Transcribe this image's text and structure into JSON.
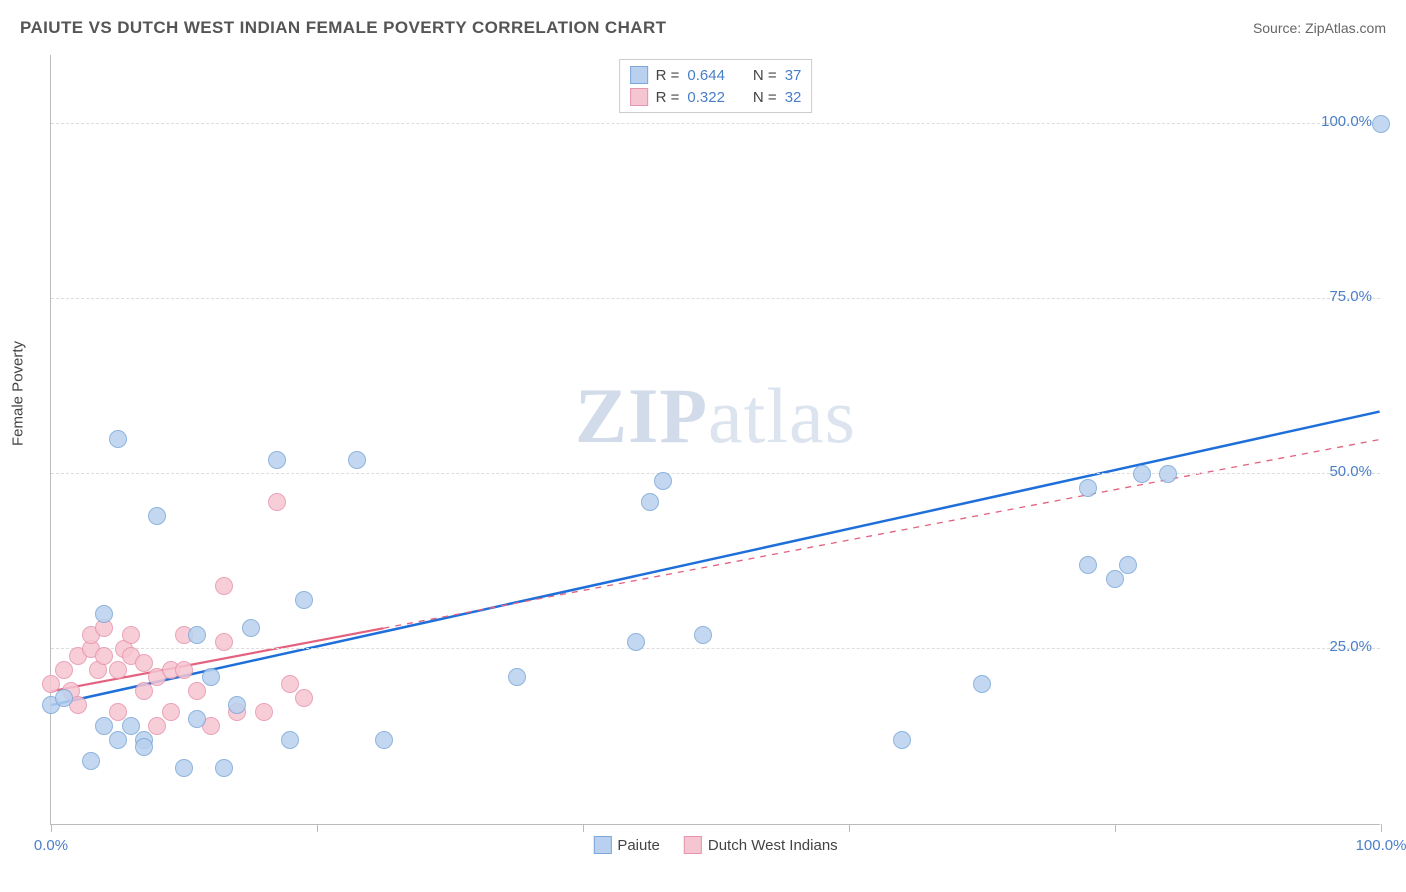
{
  "title": "PAIUTE VS DUTCH WEST INDIAN FEMALE POVERTY CORRELATION CHART",
  "source": "Source: ZipAtlas.com",
  "ylabel": "Female Poverty",
  "watermark_a": "ZIP",
  "watermark_b": "atlas",
  "chart": {
    "type": "scatter",
    "xlim": [
      0,
      100
    ],
    "ylim": [
      0,
      110
    ],
    "xticks": [
      0,
      20,
      40,
      60,
      80,
      100
    ],
    "xtick_labels": {
      "0": "0.0%",
      "100": "100.0%"
    },
    "yticks": [
      25,
      50,
      75,
      100
    ],
    "ytick_labels": {
      "25": "25.0%",
      "50": "50.0%",
      "75": "75.0%",
      "100": "100.0%"
    },
    "background_color": "#ffffff",
    "grid_color": "#dddddd",
    "marker_radius": 9,
    "series": [
      {
        "name": "Paiute",
        "color_fill": "#b9d1ee",
        "color_stroke": "#7ba7d9",
        "R": "0.644",
        "N": "37",
        "regression": {
          "x1": 0,
          "y1": 17,
          "x2": 100,
          "y2": 59,
          "solid_until": 100,
          "color": "#1e6fd9",
          "width": 2.5
        },
        "points": [
          [
            0,
            17
          ],
          [
            1,
            18
          ],
          [
            3,
            9
          ],
          [
            4,
            14
          ],
          [
            4,
            30
          ],
          [
            5,
            55
          ],
          [
            5,
            12
          ],
          [
            6,
            14
          ],
          [
            7,
            12
          ],
          [
            7,
            11
          ],
          [
            8,
            44
          ],
          [
            10,
            8
          ],
          [
            11,
            15
          ],
          [
            11,
            27
          ],
          [
            12,
            21
          ],
          [
            13,
            8
          ],
          [
            14,
            17
          ],
          [
            15,
            28
          ],
          [
            17,
            52
          ],
          [
            18,
            12
          ],
          [
            19,
            32
          ],
          [
            23,
            52
          ],
          [
            25,
            12
          ],
          [
            35,
            21
          ],
          [
            44,
            26
          ],
          [
            49,
            27
          ],
          [
            46,
            49
          ],
          [
            45,
            46
          ],
          [
            64,
            12
          ],
          [
            70,
            20
          ],
          [
            78,
            48
          ],
          [
            80,
            35
          ],
          [
            78,
            37
          ],
          [
            81,
            37
          ],
          [
            82,
            50
          ],
          [
            84,
            50
          ],
          [
            100,
            100
          ]
        ]
      },
      {
        "name": "Dutch West Indians",
        "color_fill": "#f6c5d2",
        "color_stroke": "#e695ac",
        "R": "0.322",
        "N": "32",
        "regression": {
          "x1": 0,
          "y1": 19,
          "x2": 100,
          "y2": 55,
          "solid_until": 25,
          "color": "#e4627f",
          "width": 2.2,
          "dash": "6,6"
        },
        "points": [
          [
            0,
            20
          ],
          [
            1,
            22
          ],
          [
            1.5,
            19
          ],
          [
            2,
            17
          ],
          [
            2,
            24
          ],
          [
            3,
            25
          ],
          [
            3,
            27
          ],
          [
            3.5,
            22
          ],
          [
            4,
            24
          ],
          [
            4,
            28
          ],
          [
            5,
            22
          ],
          [
            5,
            16
          ],
          [
            5.5,
            25
          ],
          [
            6,
            24
          ],
          [
            6,
            27
          ],
          [
            7,
            23
          ],
          [
            7,
            19
          ],
          [
            8,
            14
          ],
          [
            8,
            21
          ],
          [
            9,
            22
          ],
          [
            9,
            16
          ],
          [
            10,
            27
          ],
          [
            10,
            22
          ],
          [
            11,
            19
          ],
          [
            12,
            14
          ],
          [
            13,
            26
          ],
          [
            13,
            34
          ],
          [
            14,
            16
          ],
          [
            16,
            16
          ],
          [
            17,
            46
          ],
          [
            18,
            20
          ],
          [
            19,
            18
          ]
        ]
      }
    ]
  },
  "stats_labels": {
    "R": "R =",
    "N": "N ="
  },
  "bottom_legend": [
    {
      "label": "Paiute",
      "fill": "#b9d1ee",
      "stroke": "#7ba7d9"
    },
    {
      "label": "Dutch West Indians",
      "fill": "#f6c5d2",
      "stroke": "#e695ac"
    }
  ]
}
